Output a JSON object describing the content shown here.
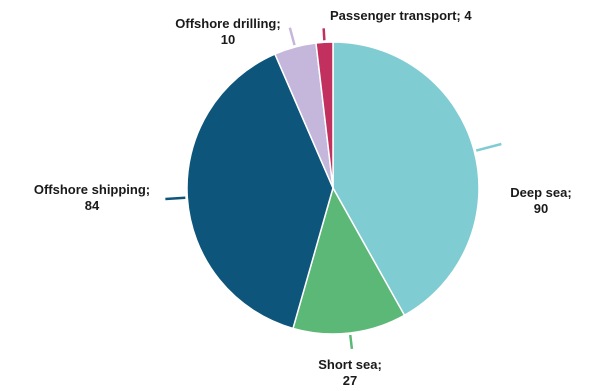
{
  "chart_data": {
    "type": "pie",
    "title": "",
    "start_angle_deg": 0,
    "direction": "clockwise",
    "slices": [
      {
        "label": "Deep sea",
        "value": 90,
        "color": "#80CCD3",
        "line1": "Deep sea;",
        "line2": "90"
      },
      {
        "label": "Short sea",
        "value": 27,
        "color": "#5CB876",
        "line1": "Short sea;",
        "line2": "27"
      },
      {
        "label": "Offshore shipping",
        "value": 84,
        "color": "#0D557A",
        "line1": "Offshore shipping;",
        "line2": "84"
      },
      {
        "label": "Offshore drilling",
        "value": 10,
        "color": "#C4B7DB",
        "line1": "Offshore drilling;",
        "line2": "10"
      },
      {
        "label": "Passenger transport",
        "value": 4,
        "color": "#C2305F",
        "line1": "Passenger transport; 4",
        "line2": ""
      }
    ]
  }
}
